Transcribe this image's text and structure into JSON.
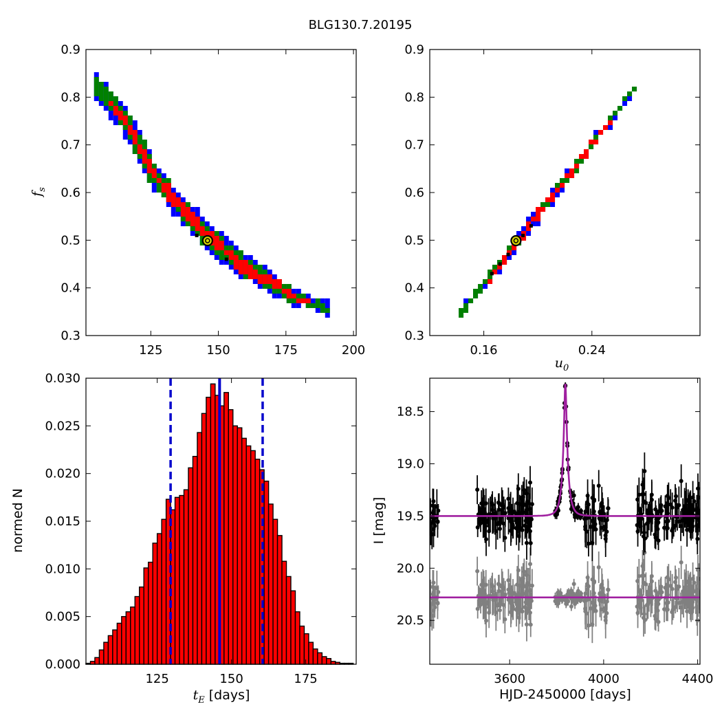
{
  "figure": {
    "title": "BLG130.7.20195"
  },
  "colors": {
    "level1": "#ff0000",
    "level2": "#008000",
    "level3": "#0000ff",
    "bar_fill": "#ff0000",
    "marker": "#d8d800",
    "median_line": "#0000cc",
    "model": "#a020a0",
    "data": "#000000",
    "residual": "#808080"
  },
  "chart_data": [
    {
      "id": "fs_vs_tE",
      "type": "heatmap",
      "xlabel": "",
      "ylabel": "f_s",
      "xlim": [
        101,
        201
      ],
      "ylim": [
        0.3,
        0.9
      ],
      "xticks": [
        125,
        150,
        175,
        200
      ],
      "xtick_labels": [
        "125",
        "150",
        "175",
        "200"
      ],
      "yticks": [
        0.3,
        0.4,
        0.5,
        0.6,
        0.7,
        0.8,
        0.9
      ],
      "ytick_labels": [
        "0.3",
        "0.4",
        "0.5",
        "0.6",
        "0.7",
        "0.8",
        "0.9"
      ],
      "contour_levels": [
        "red",
        "green",
        "blue"
      ],
      "ridge": [
        [
          104,
          0.82
        ],
        [
          115,
          0.75
        ],
        [
          125,
          0.64
        ],
        [
          135,
          0.57
        ],
        [
          145,
          0.51
        ],
        [
          155,
          0.46
        ],
        [
          165,
          0.42
        ],
        [
          178,
          0.38
        ],
        [
          190,
          0.355
        ]
      ],
      "best_fit": {
        "x": 146,
        "y": 0.499
      },
      "samples": [
        [
          142,
          0.51
        ],
        [
          153,
          0.46
        ]
      ]
    },
    {
      "id": "fs_vs_u0",
      "type": "heatmap",
      "xlabel": "u_0",
      "ylabel": "",
      "xlim": [
        0.12,
        0.32
      ],
      "ylim": [
        0.3,
        0.9
      ],
      "xticks": [
        0.16,
        0.24
      ],
      "xtick_labels": [
        "0.16",
        "0.24"
      ],
      "yticks": [
        0.3,
        0.4,
        0.5,
        0.6,
        0.7,
        0.8,
        0.9
      ],
      "ytick_labels": [
        "0.3",
        "0.4",
        "0.5",
        "0.6",
        "0.7",
        "0.8",
        "0.9"
      ],
      "contour_levels": [
        "red",
        "green",
        "blue"
      ],
      "ridge": [
        [
          0.1414,
          0.35
        ],
        [
          0.1566,
          0.4
        ],
        [
          0.1702,
          0.45
        ],
        [
          0.1838,
          0.5
        ],
        [
          0.1974,
          0.55
        ],
        [
          0.211,
          0.6
        ],
        [
          0.2246,
          0.65
        ],
        [
          0.2382,
          0.7
        ],
        [
          0.2518,
          0.75
        ],
        [
          0.2654,
          0.8
        ],
        [
          0.2705,
          0.82
        ]
      ],
      "best_fit": {
        "x": 0.1838,
        "y": 0.499
      },
      "samples": [
        [
          0.166,
          0.43
        ],
        [
          0.172,
          0.45
        ],
        [
          0.178,
          0.47
        ],
        [
          0.189,
          0.51
        ],
        [
          0.195,
          0.53
        ]
      ]
    },
    {
      "id": "tE_histogram",
      "type": "bar",
      "xlabel": "t_E [days]",
      "ylabel": "normed N",
      "xlim": [
        101,
        192
      ],
      "ylim": [
        0.0,
        0.03
      ],
      "xticks": [
        125,
        150,
        175
      ],
      "xtick_labels": [
        "125",
        "150",
        "175"
      ],
      "yticks": [
        0.0,
        0.005,
        0.01,
        0.015,
        0.02,
        0.025,
        0.03
      ],
      "ytick_labels": [
        "0.000",
        "0.005",
        "0.010",
        "0.015",
        "0.020",
        "0.025",
        "0.030"
      ],
      "bin_start": 101,
      "bin_width": 1.5,
      "values": [
        0.0001,
        0.0003,
        0.0007,
        0.0015,
        0.0023,
        0.003,
        0.0036,
        0.0043,
        0.005,
        0.0055,
        0.006,
        0.0071,
        0.0081,
        0.0101,
        0.0107,
        0.0127,
        0.0137,
        0.0152,
        0.0173,
        0.0162,
        0.0175,
        0.0177,
        0.0183,
        0.0206,
        0.0218,
        0.0243,
        0.0263,
        0.028,
        0.0294,
        0.0282,
        0.0271,
        0.0285,
        0.0267,
        0.025,
        0.0248,
        0.0237,
        0.0229,
        0.0224,
        0.0215,
        0.0204,
        0.0192,
        0.0168,
        0.0152,
        0.0135,
        0.0108,
        0.0092,
        0.0077,
        0.0055,
        0.004,
        0.0032,
        0.0023,
        0.0016,
        0.0012,
        0.0008,
        0.0006,
        0.0003,
        0.0002,
        0.0001,
        0.0001,
        0.0001
      ],
      "median": 146,
      "interval": [
        129.5,
        160.5
      ]
    },
    {
      "id": "lightcurve",
      "type": "scatter",
      "xlabel": "HJD-2450000 [days]",
      "ylabel": "I [mag]",
      "xlim": [
        3260,
        4410
      ],
      "ylim": [
        20.92,
        18.18
      ],
      "xticks": [
        3600,
        4000,
        4400
      ],
      "xtick_labels": [
        "3600",
        "4000",
        "4400"
      ],
      "yticks": [
        18.5,
        19.0,
        19.5,
        20.0,
        20.5
      ],
      "ytick_labels": [
        "18.5",
        "19.0",
        "19.5",
        "20.0",
        "20.5"
      ],
      "model": {
        "t0": 3837,
        "tE": 146,
        "u0": 0.184,
        "baseline": 19.5,
        "fs": 0.499
      },
      "residual_baseline": 20.28,
      "seasons": [
        [
          3260,
          3300
        ],
        [
          3460,
          3700
        ],
        [
          3790,
          3895
        ],
        [
          3895,
          4020
        ],
        [
          4140,
          4410
        ]
      ]
    }
  ]
}
